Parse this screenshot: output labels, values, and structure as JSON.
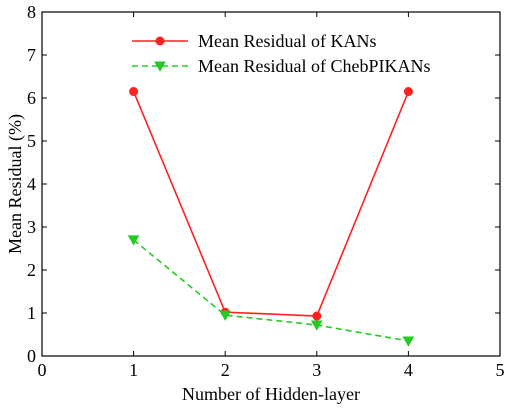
{
  "chart_data": {
    "type": "line",
    "title": "",
    "xlabel": "Number of Hidden-layer",
    "ylabel": "Mean Residual (%)",
    "xlim": [
      0,
      5
    ],
    "ylim": [
      0,
      8
    ],
    "x_ticks": [
      "0",
      "1",
      "2",
      "3",
      "4",
      "5"
    ],
    "y_ticks": [
      "0",
      "1",
      "2",
      "3",
      "4",
      "5",
      "6",
      "7",
      "8"
    ],
    "grid": false,
    "legend_position": "top-right",
    "series": [
      {
        "name": "Mean Residual of KANs",
        "x": [
          1,
          2,
          3,
          4
        ],
        "values": [
          6.15,
          1.02,
          0.93,
          6.15
        ],
        "color": "#ff2020",
        "line_style": "solid",
        "marker": "circle"
      },
      {
        "name": "Mean Residual of ChebPIKANs",
        "x": [
          1,
          2,
          3,
          4
        ],
        "values": [
          2.7,
          0.95,
          0.72,
          0.35
        ],
        "color": "#22cc22",
        "line_style": "dashed",
        "marker": "triangle-down"
      }
    ]
  }
}
